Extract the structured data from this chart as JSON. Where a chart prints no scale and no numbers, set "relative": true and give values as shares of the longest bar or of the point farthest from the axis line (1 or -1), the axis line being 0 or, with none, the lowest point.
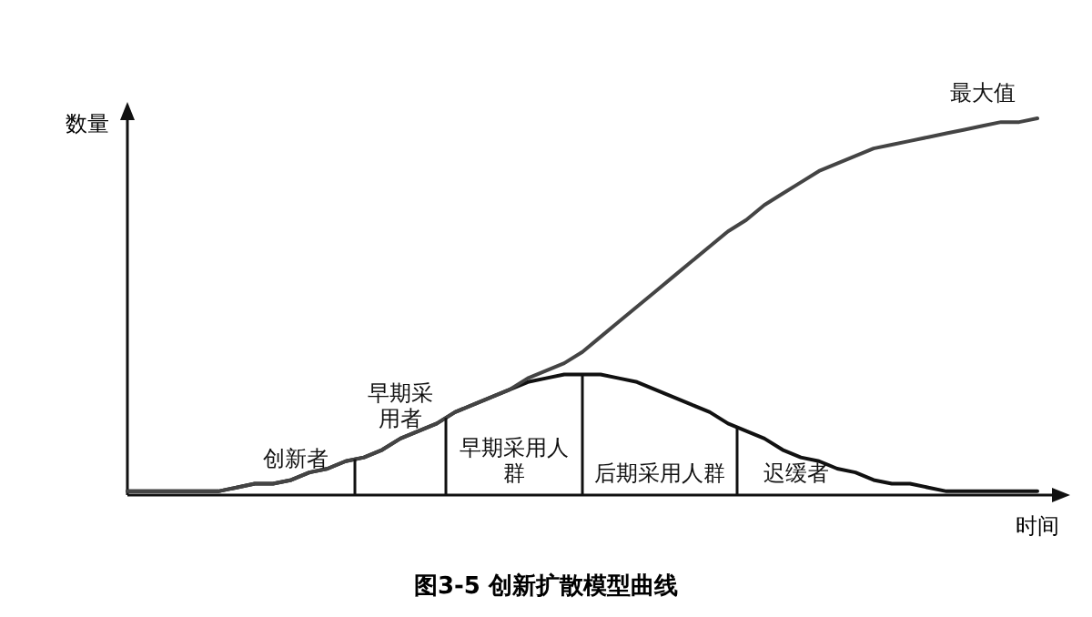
{
  "chart_data": {
    "type": "line",
    "relative": true,
    "title": "图3-5 创新扩散模型曲线",
    "xlabel": "时间",
    "ylabel": "数量",
    "categories": [
      null,
      null,
      null,
      null,
      null,
      null,
      null,
      null,
      null,
      null,
      null,
      null,
      null,
      null,
      null,
      null,
      null,
      null,
      null,
      null,
      null,
      null,
      null,
      null,
      null,
      null,
      null,
      null,
      null,
      null,
      null,
      null,
      null,
      null,
      null,
      null,
      null,
      null,
      null,
      null,
      null,
      null,
      null,
      null,
      null,
      null,
      null,
      null,
      null,
      null,
      null
    ],
    "series": [
      {
        "color": "#111111",
        "values": [
          0.01,
          0.01,
          0.01,
          0.01,
          0.01,
          0.01,
          0.02,
          0.03,
          0.03,
          0.04,
          0.06,
          0.07,
          0.09,
          0.1,
          0.12,
          0.15,
          0.17,
          0.19,
          0.22,
          0.24,
          0.26,
          0.28,
          0.3,
          0.31,
          0.32,
          0.32,
          0.32,
          0.31,
          0.3,
          0.28,
          0.26,
          0.24,
          0.22,
          0.19,
          0.17,
          0.15,
          0.12,
          0.1,
          0.09,
          0.07,
          0.06,
          0.04,
          0.03,
          0.03,
          0.02,
          0.01,
          0.01,
          0.01,
          0.01,
          0.01,
          0.01
        ]
      },
      {
        "color": "#444444",
        "values": [
          0.01,
          0.01,
          0.01,
          0.01,
          0.01,
          0.01,
          0.02,
          0.03,
          0.03,
          0.04,
          0.06,
          0.07,
          0.09,
          0.1,
          0.12,
          0.15,
          0.17,
          0.19,
          0.22,
          0.24,
          0.26,
          0.28,
          0.31,
          0.33,
          0.35,
          0.38,
          0.42,
          0.46,
          0.5,
          0.54,
          0.58,
          0.62,
          0.66,
          0.7,
          0.73,
          0.77,
          0.8,
          0.83,
          0.86,
          0.88,
          0.9,
          0.92,
          0.93,
          0.94,
          0.95,
          0.96,
          0.97,
          0.98,
          0.99,
          0.99,
          1
        ]
      }
    ],
    "annotations": [
      "创新者",
      "早期采用者",
      "早期采用人群",
      "后期采用人群",
      "迟缓者",
      "最大值"
    ]
  }
}
